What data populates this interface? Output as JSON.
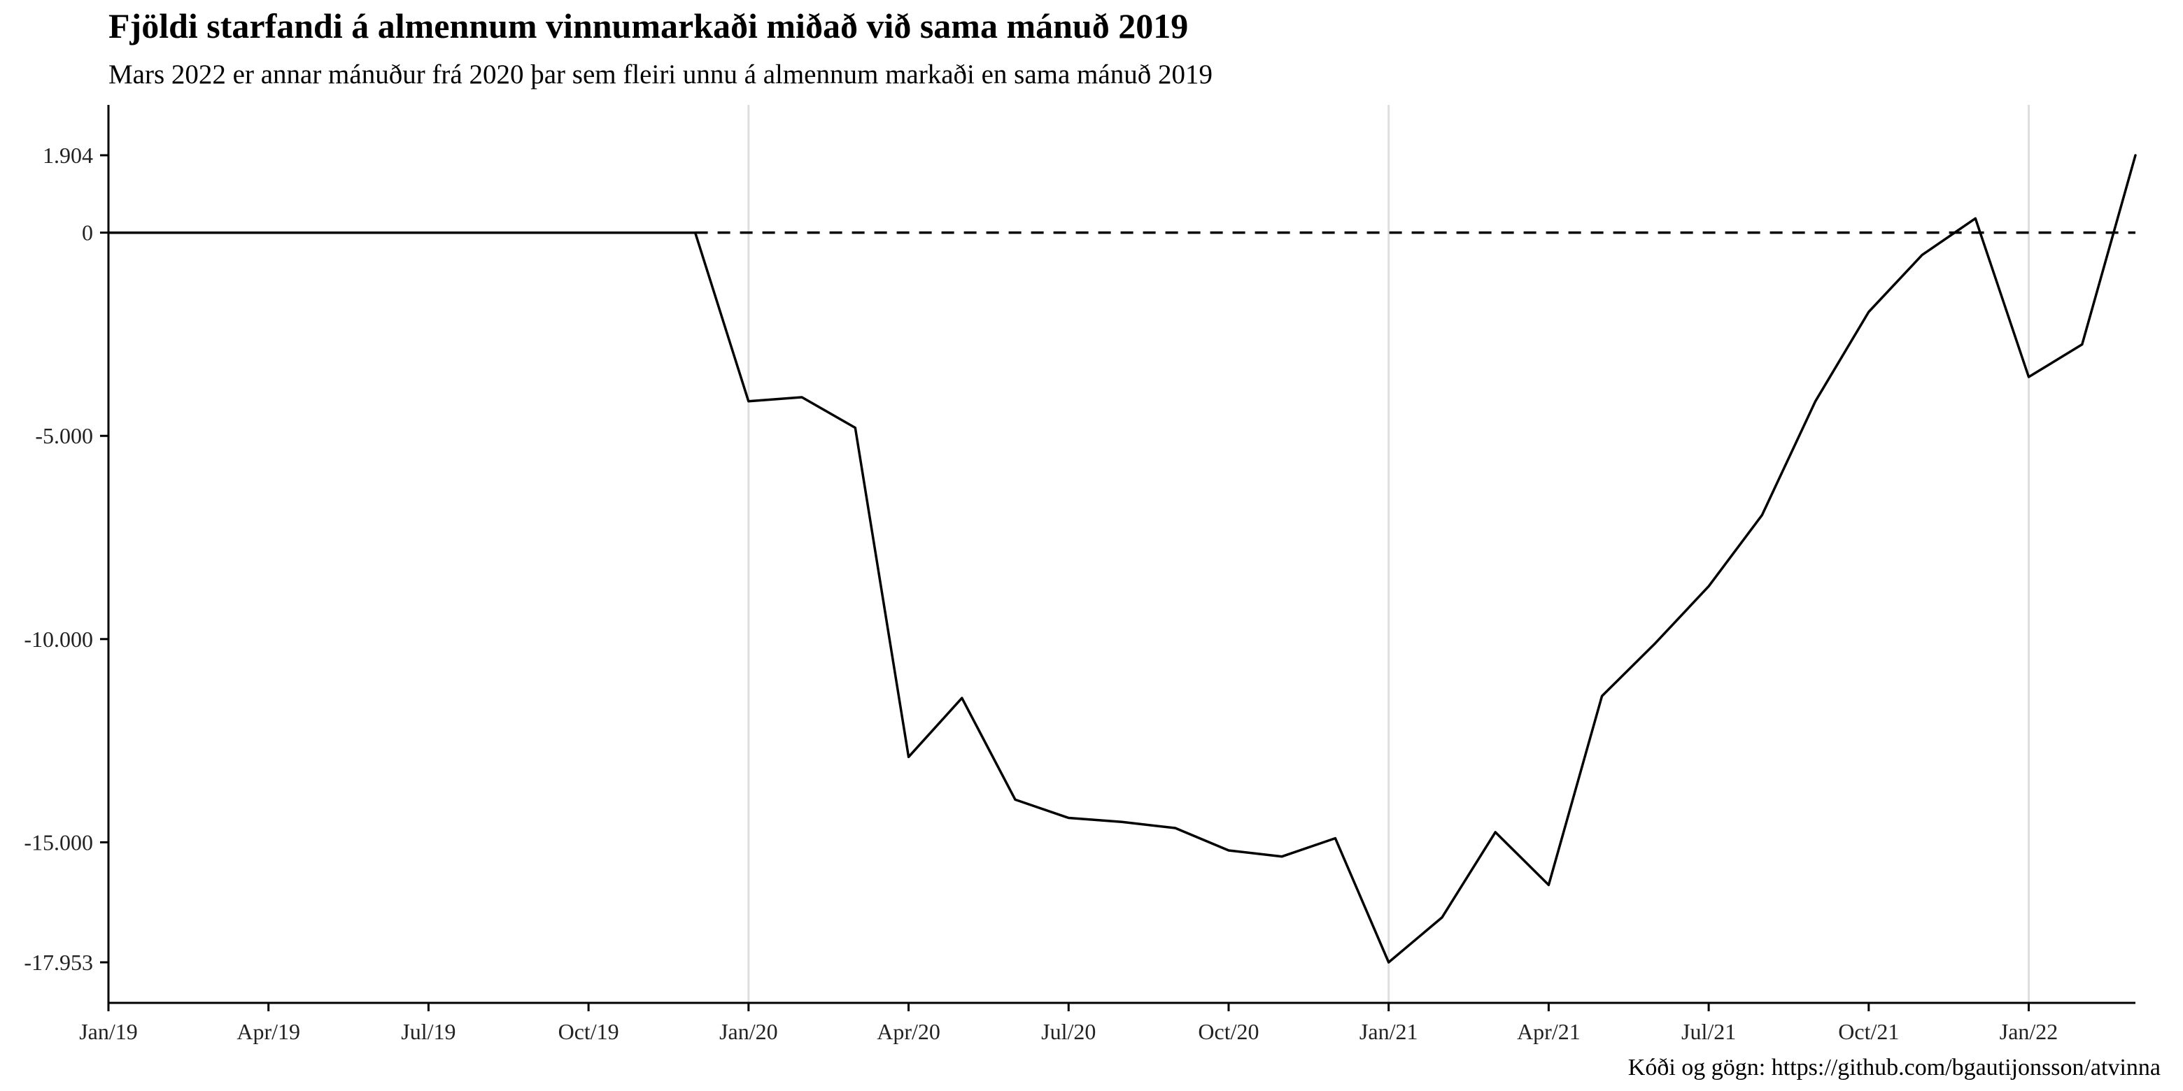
{
  "chart_data": {
    "type": "line",
    "title": "Fjöldi starfandi á almennum vinnumarkaði miðað við sama mánuð 2019",
    "subtitle": "Mars 2022 er annar mánuður frá 2020 þar sem fleiri unnu á almennum markaði en sama mánuð 2019",
    "caption": "Kóði og gögn: https://github.com/bgautijonsson/atvinna",
    "xlabel": "",
    "ylabel": "",
    "x": [
      "2019-01",
      "2019-02",
      "2019-03",
      "2019-04",
      "2019-05",
      "2019-06",
      "2019-07",
      "2019-08",
      "2019-09",
      "2019-10",
      "2019-11",
      "2019-12",
      "2020-01",
      "2020-02",
      "2020-03",
      "2020-04",
      "2020-05",
      "2020-06",
      "2020-07",
      "2020-08",
      "2020-09",
      "2020-10",
      "2020-11",
      "2020-12",
      "2021-01",
      "2021-02",
      "2021-03",
      "2021-04",
      "2021-05",
      "2021-06",
      "2021-07",
      "2021-08",
      "2021-09",
      "2021-10",
      "2021-11",
      "2021-12",
      "2022-01",
      "2022-02",
      "2022-03"
    ],
    "series": [
      {
        "values": [
          0,
          0,
          0,
          0,
          0,
          0,
          0,
          0,
          0,
          0,
          0,
          0,
          -4150,
          -4050,
          -4800,
          -12900,
          -11450,
          -13950,
          -14400,
          -14500,
          -14650,
          -15200,
          -15350,
          -14900,
          -17953,
          -16850,
          -14750,
          -16050,
          -11400,
          -10100,
          -8700,
          -6950,
          -4150,
          -1950,
          -550,
          350,
          -3550,
          -2750,
          1904
        ]
      }
    ],
    "reference_line": {
      "y": 0,
      "style": "dashed",
      "from": "2019-12"
    },
    "ylim": [
      -17953,
      1904
    ],
    "xlim": [
      "2019-01",
      "2022-03"
    ],
    "y_ticks": [
      {
        "value": 1904,
        "label": "1.904"
      },
      {
        "value": 0,
        "label": "0"
      },
      {
        "value": -5000,
        "label": "-5.000"
      },
      {
        "value": -10000,
        "label": "-10.000"
      },
      {
        "value": -15000,
        "label": "-15.000"
      },
      {
        "value": -17953,
        "label": "-17.953"
      }
    ],
    "x_ticks": [
      {
        "value": "2019-01",
        "label": "Jan/19"
      },
      {
        "value": "2019-04",
        "label": "Apr/19"
      },
      {
        "value": "2019-07",
        "label": "Jul/19"
      },
      {
        "value": "2019-10",
        "label": "Oct/19"
      },
      {
        "value": "2020-01",
        "label": "Jan/20"
      },
      {
        "value": "2020-04",
        "label": "Apr/20"
      },
      {
        "value": "2020-07",
        "label": "Jul/20"
      },
      {
        "value": "2020-10",
        "label": "Oct/20"
      },
      {
        "value": "2021-01",
        "label": "Jan/21"
      },
      {
        "value": "2021-04",
        "label": "Apr/21"
      },
      {
        "value": "2021-07",
        "label": "Jul/21"
      },
      {
        "value": "2021-10",
        "label": "Oct/21"
      },
      {
        "value": "2022-01",
        "label": "Jan/22"
      }
    ],
    "vertical_gridlines": [
      "2020-01",
      "2021-01",
      "2022-01"
    ],
    "grid": false,
    "legend": "none",
    "colors": {
      "line": "#000000",
      "gridline": "#dedede",
      "axis": "#000000"
    }
  }
}
